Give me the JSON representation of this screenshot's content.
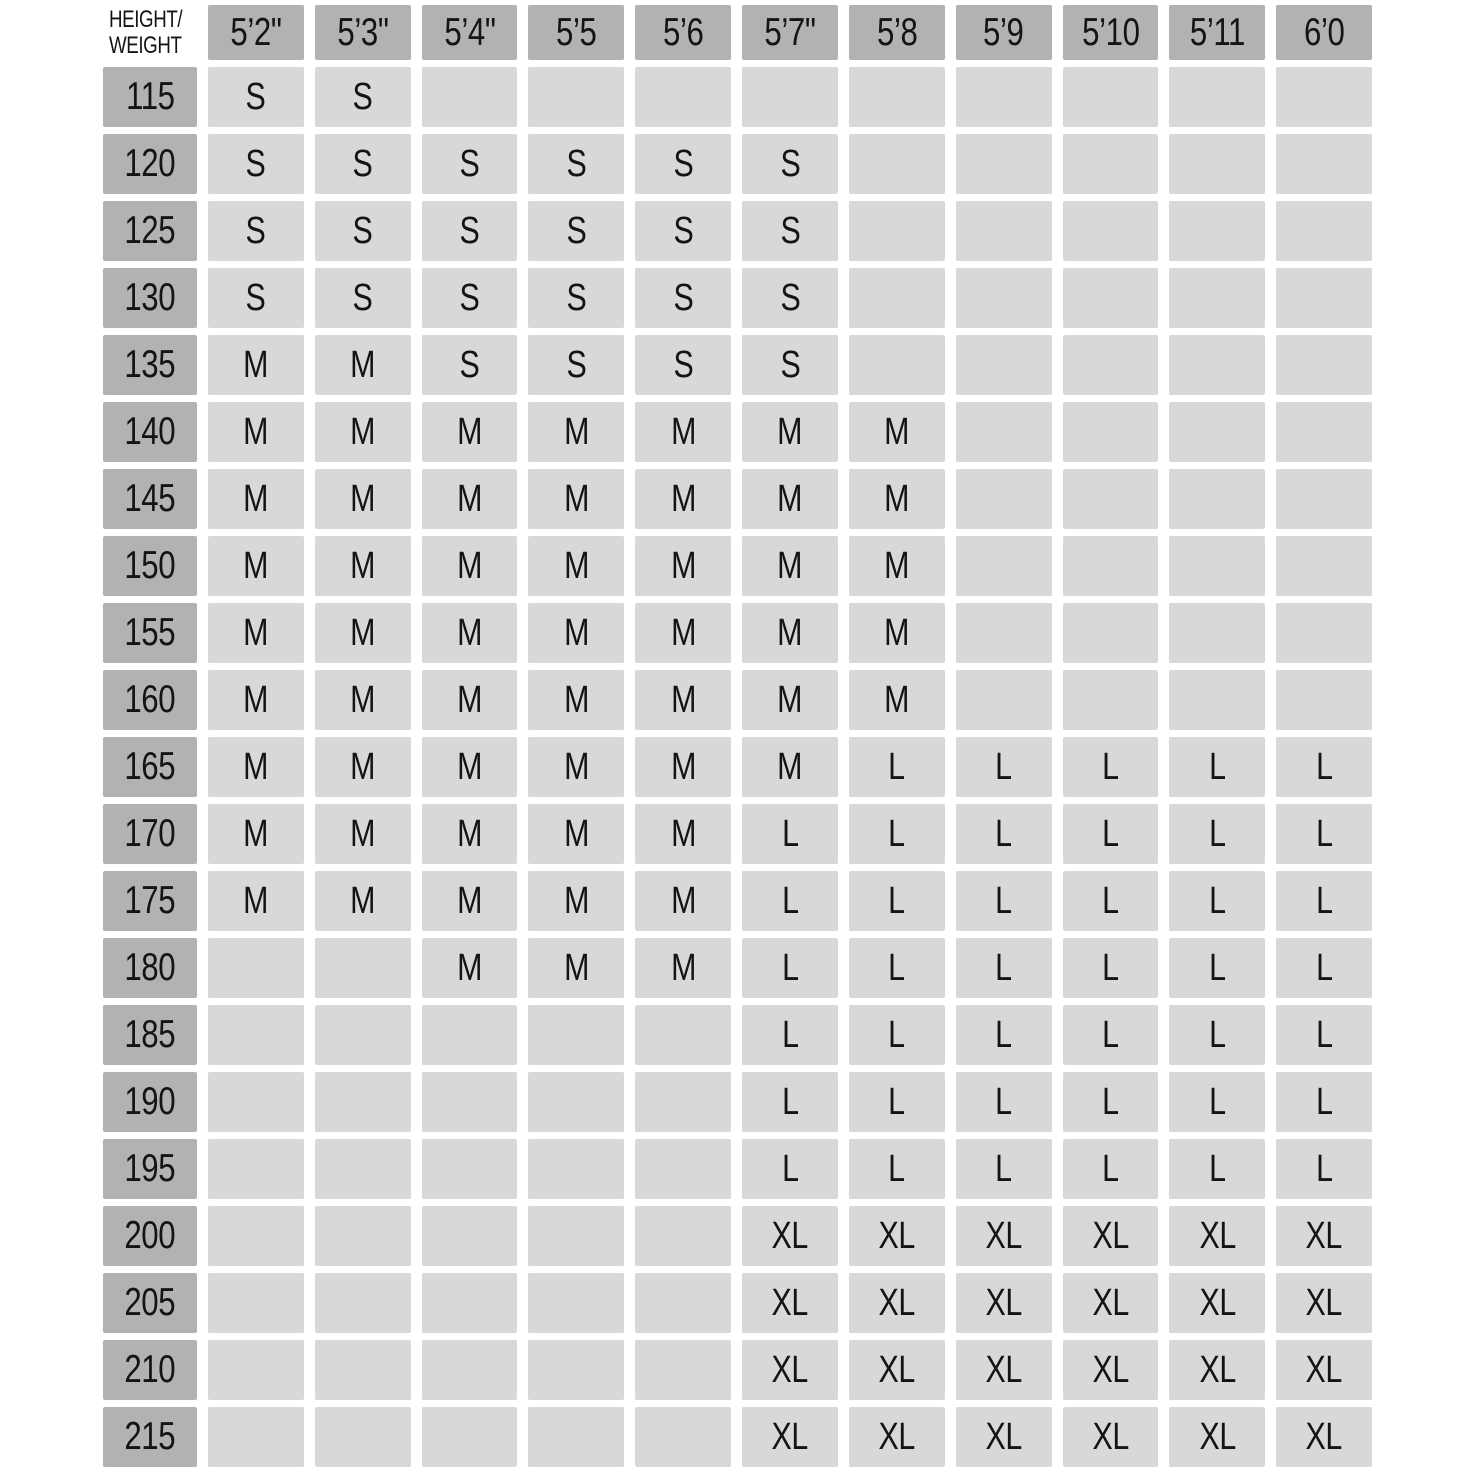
{
  "chart_data": {
    "type": "table",
    "columns": [
      "HEIGHT/WEIGHT",
      "5’2\"",
      "5’3\"",
      "5’4\"",
      "5’5",
      "5’6",
      "5’7\"",
      "5’8",
      "5’9",
      "5’10",
      "5’11",
      "6’0"
    ],
    "rows": [
      [
        "115",
        "S",
        "S",
        "",
        "",
        "",
        "",
        "",
        "",
        "",
        "",
        ""
      ],
      [
        "120",
        "S",
        "S",
        "S",
        "S",
        "S",
        "S",
        "",
        "",
        "",
        "",
        ""
      ],
      [
        "125",
        "S",
        "S",
        "S",
        "S",
        "S",
        "S",
        "",
        "",
        "",
        "",
        ""
      ],
      [
        "130",
        "S",
        "S",
        "S",
        "S",
        "S",
        "S",
        "",
        "",
        "",
        "",
        ""
      ],
      [
        "135",
        "M",
        "M",
        "S",
        "S",
        "S",
        "S",
        "",
        "",
        "",
        "",
        ""
      ],
      [
        "140",
        "M",
        "M",
        "M",
        "M",
        "M",
        "M",
        "M",
        "",
        "",
        "",
        ""
      ],
      [
        "145",
        "M",
        "M",
        "M",
        "M",
        "M",
        "M",
        "M",
        "",
        "",
        "",
        ""
      ],
      [
        "150",
        "M",
        "M",
        "M",
        "M",
        "M",
        "M",
        "M",
        "",
        "",
        "",
        ""
      ],
      [
        "155",
        "M",
        "M",
        "M",
        "M",
        "M",
        "M",
        "M",
        "",
        "",
        "",
        ""
      ],
      [
        "160",
        "M",
        "M",
        "M",
        "M",
        "M",
        "M",
        "M",
        "",
        "",
        "",
        ""
      ],
      [
        "165",
        "M",
        "M",
        "M",
        "M",
        "M",
        "M",
        "L",
        "L",
        "L",
        "L",
        "L"
      ],
      [
        "170",
        "M",
        "M",
        "M",
        "M",
        "M",
        "L",
        "L",
        "L",
        "L",
        "L",
        "L"
      ],
      [
        "175",
        "M",
        "M",
        "M",
        "M",
        "M",
        "L",
        "L",
        "L",
        "L",
        "L",
        "L"
      ],
      [
        "180",
        "",
        "",
        "M",
        "M",
        "M",
        "L",
        "L",
        "L",
        "L",
        "L",
        "L"
      ],
      [
        "185",
        "",
        "",
        "",
        "",
        "",
        "L",
        "L",
        "L",
        "L",
        "L",
        "L"
      ],
      [
        "190",
        "",
        "",
        "",
        "",
        "",
        "L",
        "L",
        "L",
        "L",
        "L",
        "L"
      ],
      [
        "195",
        "",
        "",
        "",
        "",
        "",
        "L",
        "L",
        "L",
        "L",
        "L",
        "L"
      ],
      [
        "200",
        "",
        "",
        "",
        "",
        "",
        "XL",
        "XL",
        "XL",
        "XL",
        "XL",
        "XL"
      ],
      [
        "205",
        "",
        "",
        "",
        "",
        "",
        "XL",
        "XL",
        "XL",
        "XL",
        "XL",
        "XL"
      ],
      [
        "210",
        "",
        "",
        "",
        "",
        "",
        "XL",
        "XL",
        "XL",
        "XL",
        "XL",
        "XL"
      ],
      [
        "215",
        "",
        "",
        "",
        "",
        "",
        "XL",
        "XL",
        "XL",
        "XL",
        "XL",
        "XL"
      ]
    ]
  },
  "table": {
    "corner": {
      "line1": "HEIGHT/",
      "line2": "WEIGHT"
    },
    "columns": [
      "5’2\"",
      "5’3\"",
      "5’4\"",
      "5’5",
      "5’6",
      "5’7\"",
      "5’8",
      "5’9",
      "5’10",
      "5’11",
      "6’0"
    ],
    "rows": [
      {
        "weight": "115",
        "sizes": [
          "S",
          "S",
          "",
          "",
          "",
          "",
          "",
          "",
          "",
          "",
          ""
        ]
      },
      {
        "weight": "120",
        "sizes": [
          "S",
          "S",
          "S",
          "S",
          "S",
          "S",
          "",
          "",
          "",
          "",
          ""
        ]
      },
      {
        "weight": "125",
        "sizes": [
          "S",
          "S",
          "S",
          "S",
          "S",
          "S",
          "",
          "",
          "",
          "",
          ""
        ]
      },
      {
        "weight": "130",
        "sizes": [
          "S",
          "S",
          "S",
          "S",
          "S",
          "S",
          "",
          "",
          "",
          "",
          ""
        ]
      },
      {
        "weight": "135",
        "sizes": [
          "M",
          "M",
          "S",
          "S",
          "S",
          "S",
          "",
          "",
          "",
          "",
          ""
        ]
      },
      {
        "weight": "140",
        "sizes": [
          "M",
          "M",
          "M",
          "M",
          "M",
          "M",
          "M",
          "",
          "",
          "",
          ""
        ]
      },
      {
        "weight": "145",
        "sizes": [
          "M",
          "M",
          "M",
          "M",
          "M",
          "M",
          "M",
          "",
          "",
          "",
          ""
        ]
      },
      {
        "weight": "150",
        "sizes": [
          "M",
          "M",
          "M",
          "M",
          "M",
          "M",
          "M",
          "",
          "",
          "",
          ""
        ]
      },
      {
        "weight": "155",
        "sizes": [
          "M",
          "M",
          "M",
          "M",
          "M",
          "M",
          "M",
          "",
          "",
          "",
          ""
        ]
      },
      {
        "weight": "160",
        "sizes": [
          "M",
          "M",
          "M",
          "M",
          "M",
          "M",
          "M",
          "",
          "",
          "",
          ""
        ]
      },
      {
        "weight": "165",
        "sizes": [
          "M",
          "M",
          "M",
          "M",
          "M",
          "M",
          "L",
          "L",
          "L",
          "L",
          "L"
        ]
      },
      {
        "weight": "170",
        "sizes": [
          "M",
          "M",
          "M",
          "M",
          "M",
          "L",
          "L",
          "L",
          "L",
          "L",
          "L"
        ]
      },
      {
        "weight": "175",
        "sizes": [
          "M",
          "M",
          "M",
          "M",
          "M",
          "L",
          "L",
          "L",
          "L",
          "L",
          "L"
        ]
      },
      {
        "weight": "180",
        "sizes": [
          "",
          "",
          "M",
          "M",
          "M",
          "L",
          "L",
          "L",
          "L",
          "L",
          "L"
        ]
      },
      {
        "weight": "185",
        "sizes": [
          "",
          "",
          "",
          "",
          "",
          "L",
          "L",
          "L",
          "L",
          "L",
          "L"
        ]
      },
      {
        "weight": "190",
        "sizes": [
          "",
          "",
          "",
          "",
          "",
          "L",
          "L",
          "L",
          "L",
          "L",
          "L"
        ]
      },
      {
        "weight": "195",
        "sizes": [
          "",
          "",
          "",
          "",
          "",
          "L",
          "L",
          "L",
          "L",
          "L",
          "L"
        ]
      },
      {
        "weight": "200",
        "sizes": [
          "",
          "",
          "",
          "",
          "",
          "XL",
          "XL",
          "XL",
          "XL",
          "XL",
          "XL"
        ]
      },
      {
        "weight": "205",
        "sizes": [
          "",
          "",
          "",
          "",
          "",
          "XL",
          "XL",
          "XL",
          "XL",
          "XL",
          "XL"
        ]
      },
      {
        "weight": "210",
        "sizes": [
          "",
          "",
          "",
          "",
          "",
          "XL",
          "XL",
          "XL",
          "XL",
          "XL",
          "XL"
        ]
      },
      {
        "weight": "215",
        "sizes": [
          "",
          "",
          "",
          "",
          "",
          "XL",
          "XL",
          "XL",
          "XL",
          "XL",
          "XL"
        ]
      }
    ],
    "colors": {
      "header_bg": "#b2b2b2",
      "cell_bg": "#d8d8d8",
      "text_color": "#141414",
      "page_bg": "#ffffff"
    }
  }
}
